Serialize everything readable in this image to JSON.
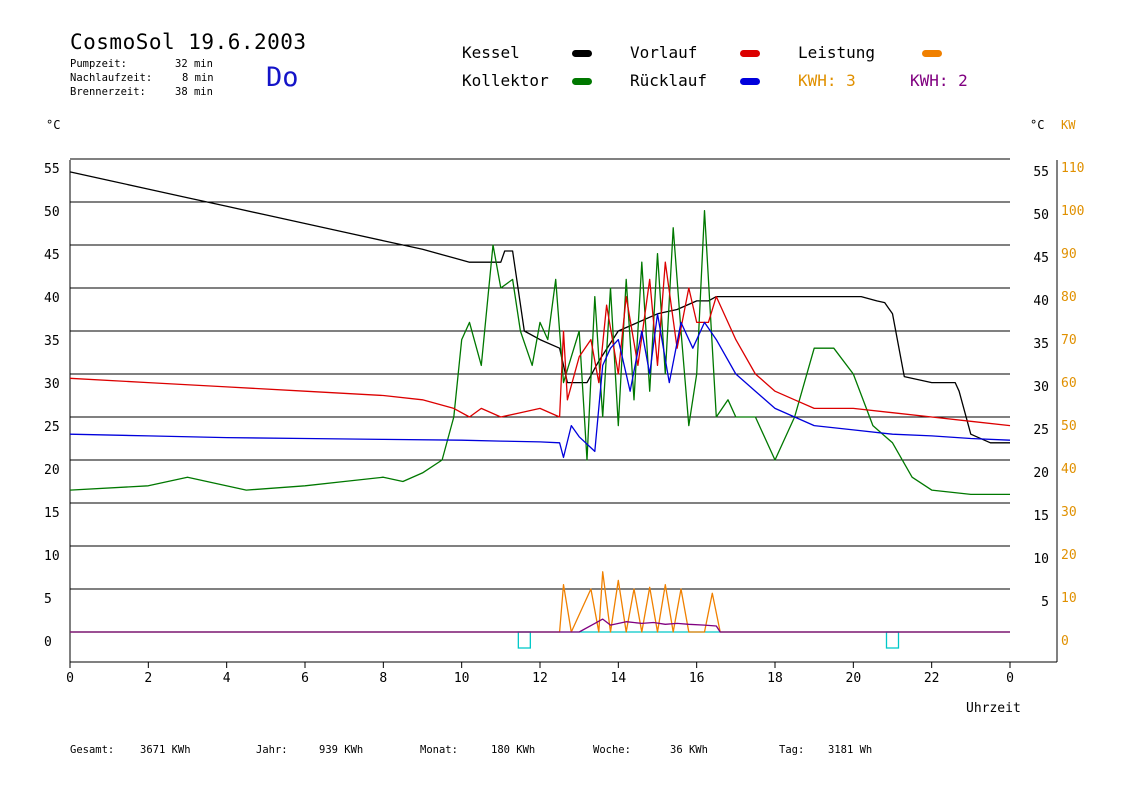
{
  "header": {
    "title": "CosmoSol 19.6.2003",
    "day": "Do",
    "stats": [
      {
        "label": "Pumpzeit:",
        "value": "32 min"
      },
      {
        "label": "Nachlaufzeit:",
        "value": "8 min"
      },
      {
        "label": "Brennerzeit:",
        "value": "38 min"
      }
    ]
  },
  "legend": {
    "kessel": "Kessel",
    "kollektor": "Kollektor",
    "vorlauf": "Vorlauf",
    "ruecklauf": "Rücklauf",
    "leistung": "Leistung",
    "kwh_orange": "KWH: 3",
    "kwh_purple": "KWH: 2"
  },
  "colors": {
    "kessel": "#000000",
    "kollektor": "#007800",
    "vorlauf": "#dc0000",
    "ruecklauf": "#0000dc",
    "leistung": "#f08000",
    "kwh_purple": "#800080",
    "baseline": "#00c8c8",
    "axis_right_kw": "#e09000"
  },
  "axes": {
    "left_unit": "°C",
    "right_unit_c": "°C",
    "right_unit_kw": "KW",
    "xlabel": "Uhrzeit"
  },
  "footer": [
    {
      "label": "Gesamt:",
      "value": "3671 KWh"
    },
    {
      "label": "Jahr:",
      "value": "939 KWh"
    },
    {
      "label": "Monat:",
      "value": "180 KWh"
    },
    {
      "label": "Woche:",
      "value": "36 KWh"
    },
    {
      "label": "Tag:",
      "value": "3181 Wh"
    }
  ],
  "chart_data": {
    "type": "line",
    "title": "CosmoSol 19.6.2003",
    "xlabel": "Uhrzeit",
    "ylabel": "°C",
    "y2label": "KW",
    "xlim": [
      0,
      24
    ],
    "ylim": [
      -3.5,
      55
    ],
    "x_ticks": [
      "0",
      "2",
      "4",
      "6",
      "8",
      "10",
      "12",
      "14",
      "16",
      "18",
      "20",
      "22",
      "0"
    ],
    "y_ticks_left": [
      0,
      5,
      10,
      15,
      20,
      25,
      30,
      35,
      40,
      45,
      50,
      55
    ],
    "y_ticks_right_c": [
      5,
      10,
      15,
      20,
      25,
      30,
      35,
      40,
      45,
      50,
      55
    ],
    "y_ticks_right_kw": [
      0,
      10,
      20,
      30,
      40,
      50,
      60,
      70,
      80,
      90,
      100,
      110
    ],
    "grid": true,
    "series": [
      {
        "name": "Kessel",
        "color": "#000000",
        "x": [
          0,
          1,
          2,
          3,
          4,
          5,
          6,
          7,
          8,
          9,
          9.8,
          10.2,
          11,
          11.1,
          11.3,
          11.6,
          12,
          12.5,
          12.7,
          13.2,
          13.5,
          14,
          14.5,
          15,
          15.5,
          16,
          16.3,
          16.5,
          17,
          18,
          19,
          19.8,
          20.2,
          20.6,
          20.8,
          21,
          21.3,
          22,
          22.6,
          22.7,
          23,
          23.5,
          24
        ],
        "y": [
          53.5,
          52.5,
          51.5,
          50.5,
          49.5,
          48.5,
          47.5,
          46.5,
          45.5,
          44.5,
          43.5,
          43,
          43,
          44.3,
          44.3,
          35,
          34,
          33,
          29,
          29,
          31.5,
          35,
          36,
          37,
          37.5,
          38.5,
          38.5,
          39,
          39,
          39,
          39,
          39,
          39,
          38.5,
          38.3,
          37,
          29.7,
          29,
          29,
          28,
          23,
          22,
          22
        ]
      },
      {
        "name": "Kollektor",
        "color": "#007800",
        "x": [
          0,
          2,
          3,
          4.5,
          6,
          7,
          8,
          8.5,
          9,
          9.5,
          9.8,
          10,
          10.2,
          10.5,
          10.8,
          11,
          11.3,
          11.5,
          11.8,
          12,
          12.2,
          12.4,
          12.6,
          12.8,
          13,
          13.2,
          13.4,
          13.6,
          13.8,
          14,
          14.2,
          14.4,
          14.6,
          14.8,
          15,
          15.2,
          15.4,
          15.6,
          15.8,
          16,
          16.2,
          16.5,
          16.8,
          17,
          17.5,
          18,
          18.5,
          19,
          19.5,
          20,
          20.5,
          21,
          21.5,
          22,
          23,
          24
        ],
        "y": [
          16.5,
          17,
          18,
          16.5,
          17,
          17.5,
          18,
          17.5,
          18.5,
          20,
          25,
          34,
          36,
          31,
          45,
          40,
          41,
          35,
          31,
          36,
          34,
          41,
          29,
          32,
          35,
          20,
          39,
          25,
          40,
          24,
          41,
          27,
          43,
          28,
          44,
          30,
          47,
          35,
          24,
          30,
          49,
          25,
          27,
          25,
          25,
          20,
          25,
          33,
          33,
          30,
          24,
          22,
          18,
          16.5,
          16,
          16
        ]
      },
      {
        "name": "Vorlauf",
        "color": "#dc0000",
        "x": [
          0,
          2,
          4,
          6,
          8,
          9,
          9.8,
          10.2,
          10.5,
          11,
          11.5,
          12,
          12.5,
          12.6,
          12.7,
          13,
          13.3,
          13.5,
          13.7,
          14,
          14.2,
          14.5,
          14.8,
          15,
          15.2,
          15.5,
          15.8,
          16,
          16.3,
          16.5,
          17,
          17.5,
          18,
          18.5,
          19,
          20,
          21,
          22,
          23,
          24
        ],
        "y": [
          29.5,
          29,
          28.5,
          28,
          27.5,
          27,
          26,
          25,
          26,
          25,
          25.5,
          26,
          25,
          35,
          27,
          32,
          34,
          29,
          38,
          30,
          39,
          31,
          41,
          31,
          43,
          33,
          40,
          36,
          36,
          39,
          34,
          30,
          28,
          27,
          26,
          26,
          25.5,
          25,
          24.5,
          24
        ]
      },
      {
        "name": "Rücklauf",
        "color": "#0000dc",
        "x": [
          0,
          2,
          4,
          6,
          8,
          10,
          11,
          12,
          12.5,
          12.6,
          12.8,
          13,
          13.4,
          13.6,
          13.8,
          14,
          14.3,
          14.6,
          14.8,
          15,
          15.3,
          15.6,
          15.9,
          16.2,
          16.5,
          17,
          17.5,
          18,
          18.5,
          19,
          20,
          21,
          22,
          23,
          24
        ],
        "y": [
          23,
          22.8,
          22.6,
          22.5,
          22.4,
          22.3,
          22.2,
          22.1,
          22,
          20.3,
          24,
          22.7,
          21,
          31,
          33,
          34,
          28,
          35,
          30,
          37,
          29,
          36,
          33,
          36,
          34,
          30,
          28,
          26,
          25,
          24,
          23.5,
          23,
          22.8,
          22.5,
          22.3
        ]
      },
      {
        "name": "Leistung",
        "color": "#f08000",
        "x": [
          0,
          12.5,
          12.6,
          12.8,
          13.3,
          13.5,
          13.6,
          13.8,
          14,
          14.2,
          14.4,
          14.6,
          14.8,
          15,
          15.2,
          15.4,
          15.6,
          15.8,
          16.2,
          16.4,
          16.6,
          24
        ],
        "y": [
          0,
          0,
          5.5,
          0,
          5,
          0,
          7,
          0,
          6,
          0,
          5,
          0,
          5.2,
          0,
          5.5,
          0,
          5,
          0,
          0,
          4.5,
          0,
          0
        ]
      },
      {
        "name": "KWH: 2",
        "color": "#800080",
        "x": [
          0,
          13,
          13.4,
          13.6,
          13.8,
          14.2,
          14.6,
          14.9,
          15.2,
          15.5,
          15.8,
          16.2,
          16.5,
          16.6,
          24
        ],
        "y": [
          0,
          0,
          1,
          1.5,
          0.8,
          1.2,
          1,
          1.1,
          0.9,
          1,
          0.9,
          0.8,
          0.7,
          0,
          0
        ]
      }
    ],
    "markers": [
      {
        "x": 11.6,
        "label": ""
      },
      {
        "x": 21.0,
        "label": ""
      }
    ]
  }
}
